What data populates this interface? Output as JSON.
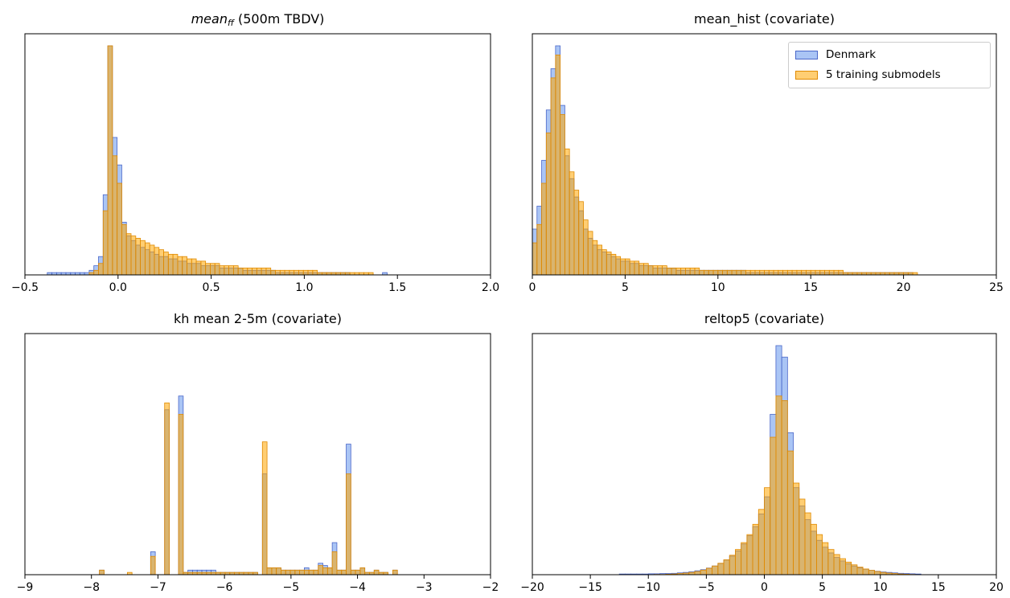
{
  "colors": {
    "denmark_fill": "#6495ED",
    "denmark_edge": "#4a67c9",
    "training_fill": "#FFA500",
    "training_edge": "#e08a00",
    "axis": "#000000"
  },
  "legend": {
    "placement": "upper-right of top-right panel",
    "items": [
      {
        "label": "Denmark",
        "color": "#6495ED"
      },
      {
        "label": "5 training submodels",
        "color": "#FFA500"
      }
    ]
  },
  "chart_data": [
    {
      "type": "histogram",
      "title_italic": "mean",
      "title_sub": "ff",
      "title_rest": " (500m TBDV)",
      "xlim": [
        -0.5,
        2.0
      ],
      "xticks": [
        -0.5,
        0.0,
        0.5,
        1.0,
        1.5,
        2.0
      ],
      "xtick_labels": [
        "−0.5",
        "0.0",
        "0.5",
        "1.0",
        "1.5",
        "2.0"
      ],
      "yaxis_visible": false,
      "bin_start": -0.38,
      "bin_width": 0.025,
      "series": [
        {
          "name": "Denmark",
          "values": [
            1,
            1,
            1,
            1,
            1,
            1,
            1,
            1,
            1,
            2,
            4,
            8,
            35,
            100,
            60,
            48,
            23,
            17,
            15,
            13,
            12,
            11,
            10,
            9,
            8,
            8,
            7,
            7,
            6,
            6,
            5,
            5,
            5,
            4,
            4,
            4,
            4,
            3,
            3,
            3,
            3,
            3,
            2,
            2,
            2,
            2,
            2,
            2,
            2,
            1,
            1,
            1,
            1,
            1,
            1,
            1,
            1,
            1,
            1,
            1,
            1,
            1,
            1,
            1,
            1,
            0,
            0,
            0,
            0,
            0,
            0,
            0,
            1,
            0,
            0,
            0,
            0,
            0,
            0,
            0,
            0,
            0,
            0,
            0,
            0,
            0,
            0,
            0,
            0,
            0,
            0,
            0,
            0,
            0,
            0,
            0
          ]
        },
        {
          "name": "5 training submodels",
          "values": [
            0,
            0,
            0,
            0,
            0,
            0,
            0,
            0,
            0,
            1,
            2,
            5,
            28,
            100,
            52,
            40,
            22,
            18,
            17,
            16,
            15,
            14,
            13,
            12,
            11,
            10,
            9,
            9,
            8,
            8,
            7,
            7,
            6,
            6,
            5,
            5,
            5,
            4,
            4,
            4,
            4,
            3,
            3,
            3,
            3,
            3,
            3,
            3,
            2,
            2,
            2,
            2,
            2,
            2,
            2,
            2,
            2,
            2,
            1,
            1,
            1,
            1,
            1,
            1,
            1,
            1,
            1,
            1,
            1,
            1,
            0,
            0,
            0,
            0,
            0,
            0,
            0,
            0,
            0,
            0,
            0,
            0,
            0,
            0,
            0,
            0,
            0,
            0,
            0,
            0,
            0,
            0,
            0,
            0,
            0,
            0
          ]
        }
      ]
    },
    {
      "type": "histogram",
      "title": "mean_hist (covariate)",
      "xlim": [
        0,
        25
      ],
      "xticks": [
        0,
        5,
        10,
        15,
        20,
        25
      ],
      "xtick_labels": [
        "0",
        "5",
        "10",
        "15",
        "20",
        "25"
      ],
      "yaxis_visible": false,
      "bin_start": 0,
      "bin_width": 0.25,
      "series": [
        {
          "name": "Denmark",
          "values": [
            20,
            30,
            50,
            72,
            90,
            100,
            74,
            52,
            42,
            34,
            28,
            20,
            16,
            13,
            11,
            10,
            9,
            8,
            7,
            6,
            6,
            5,
            5,
            4,
            4,
            4,
            3,
            3,
            3,
            3,
            3,
            2,
            2,
            2,
            2,
            2,
            2,
            2,
            2,
            2,
            2,
            2,
            2,
            2,
            2,
            2,
            1,
            1,
            1,
            1,
            1,
            1,
            1,
            1,
            1,
            1,
            1,
            1,
            1,
            1,
            1,
            1,
            1,
            1,
            1,
            1,
            1,
            1,
            1,
            1,
            1,
            1,
            1,
            1,
            1,
            1,
            1,
            1,
            1,
            1,
            1,
            1,
            0,
            0,
            0,
            0,
            0,
            0,
            0,
            0,
            0,
            0,
            0,
            0,
            0,
            0,
            0,
            0,
            0,
            0
          ]
        },
        {
          "name": "5 training submodels",
          "values": [
            14,
            22,
            40,
            62,
            86,
            96,
            70,
            55,
            45,
            37,
            32,
            24,
            19,
            15,
            13,
            11,
            10,
            9,
            8,
            7,
            7,
            6,
            6,
            5,
            5,
            4,
            4,
            4,
            4,
            3,
            3,
            3,
            3,
            3,
            3,
            3,
            2,
            2,
            2,
            2,
            2,
            2,
            2,
            2,
            2,
            2,
            2,
            2,
            2,
            2,
            2,
            2,
            2,
            2,
            2,
            2,
            2,
            2,
            2,
            2,
            2,
            2,
            2,
            2,
            2,
            2,
            2,
            1,
            1,
            1,
            1,
            1,
            1,
            1,
            1,
            1,
            1,
            1,
            1,
            1,
            1,
            1,
            1,
            0,
            0,
            0,
            0,
            0,
            0,
            0,
            0,
            0,
            0,
            0,
            0,
            0,
            0,
            0,
            0,
            0
          ]
        }
      ]
    },
    {
      "type": "histogram",
      "title": "kh mean 2-5m (covariate)",
      "xlim": [
        -9,
        -2
      ],
      "xticks": [
        -9,
        -8,
        -7,
        -6,
        -5,
        -4,
        -3,
        -2
      ],
      "xtick_labels": [
        "−9",
        "−8",
        "−7",
        "−6",
        "−5",
        "−4",
        "−3",
        "−2"
      ],
      "yaxis_visible": false,
      "bin_start": -7.88,
      "bin_width": 0.07,
      "series": [
        {
          "name": "Denmark",
          "values": [
            2,
            0,
            0,
            0,
            0,
            0,
            0,
            0,
            0,
            0,
            0,
            10,
            0,
            0,
            72,
            0,
            0,
            78,
            1,
            2,
            2,
            2,
            2,
            2,
            2,
            1,
            1,
            1,
            1,
            1,
            1,
            1,
            1,
            1,
            0,
            44,
            3,
            3,
            3,
            2,
            2,
            2,
            2,
            2,
            3,
            2,
            2,
            5,
            4,
            3,
            14,
            2,
            2,
            57,
            2,
            2,
            3,
            1,
            1,
            2,
            1,
            1,
            0,
            2,
            0,
            0,
            0,
            0,
            0,
            0,
            0,
            0
          ]
        },
        {
          "name": "5 training submodels",
          "values": [
            2,
            0,
            0,
            0,
            0,
            0,
            1,
            0,
            0,
            0,
            0,
            8,
            0,
            0,
            75,
            0,
            0,
            70,
            1,
            1,
            1,
            1,
            1,
            1,
            1,
            1,
            1,
            1,
            1,
            1,
            1,
            1,
            1,
            1,
            0,
            58,
            3,
            3,
            3,
            2,
            2,
            2,
            2,
            2,
            2,
            2,
            2,
            4,
            3,
            3,
            10,
            2,
            2,
            44,
            2,
            2,
            3,
            1,
            1,
            2,
            1,
            1,
            0,
            2,
            0,
            0,
            0,
            0,
            0,
            0,
            0,
            0
          ]
        }
      ]
    },
    {
      "type": "histogram",
      "title": "reltop5 (covariate)",
      "xlim": [
        -20,
        20
      ],
      "xticks": [
        -20,
        -15,
        -10,
        -5,
        0,
        5,
        10,
        15,
        20
      ],
      "xtick_labels": [
        "−20",
        "−15",
        "−10",
        "−5",
        "0",
        "5",
        "10",
        "15",
        "20"
      ],
      "yaxis_visible": false,
      "bin_start": -12.5,
      "bin_width": 0.5,
      "series": [
        {
          "name": "Denmark",
          "values": [
            0.3,
            0.3,
            0.3,
            0.3,
            0.3,
            0.4,
            0.4,
            0.5,
            0.5,
            0.6,
            0.8,
            1.0,
            1.3,
            1.7,
            2.2,
            2.9,
            3.8,
            4.9,
            6.4,
            8.1,
            10.4,
            13.4,
            17.0,
            21.0,
            26.5,
            34.0,
            70.0,
            100.0,
            95.0,
            62.0,
            38.0,
            30.0,
            24.0,
            19.0,
            15.0,
            12.0,
            9.5,
            7.5,
            6.0,
            4.8,
            3.8,
            3.0,
            2.4,
            1.9,
            1.5,
            1.2,
            1.0,
            0.8,
            0.6,
            0.5,
            0.4,
            0.3
          ]
        },
        {
          "name": "5 training submodels",
          "values": [
            0.0,
            0.0,
            0.0,
            0.0,
            0.0,
            0.0,
            0.1,
            0.1,
            0.2,
            0.3,
            0.5,
            0.7,
            1.0,
            1.4,
            2.0,
            2.8,
            3.8,
            5.0,
            6.5,
            8.5,
            11.0,
            14.0,
            17.5,
            22.0,
            28.5,
            38.0,
            60.0,
            78.0,
            76.0,
            54.0,
            40.0,
            33.0,
            27.0,
            22.0,
            17.5,
            14.0,
            11.0,
            8.8,
            7.0,
            5.5,
            4.3,
            3.3,
            2.5,
            1.9,
            1.4,
            1.0,
            0.7,
            0.5,
            0.3,
            0.2,
            0.1,
            0.0
          ]
        }
      ]
    }
  ]
}
